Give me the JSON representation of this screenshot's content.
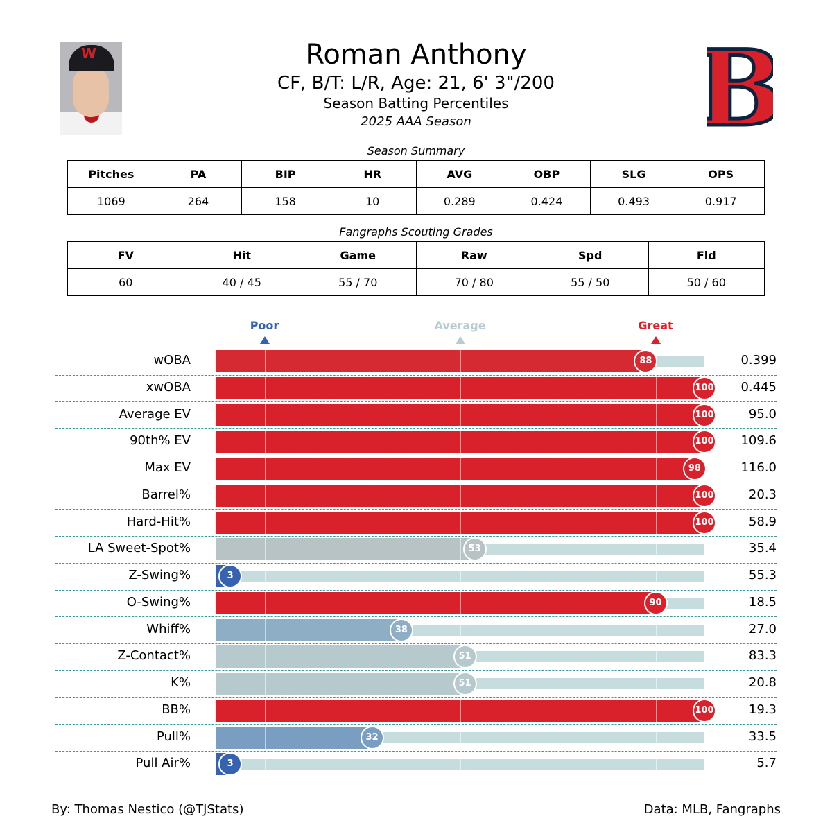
{
  "header": {
    "name": "Roman Anthony",
    "bio": "CF, B/T: L/R, Age: 21, 6' 3\"/200",
    "subtitle": "Season Batting Percentiles",
    "season": "2025 AAA Season",
    "logo_text": "B"
  },
  "summary": {
    "title": "Season Summary",
    "headers": [
      "Pitches",
      "PA",
      "BIP",
      "HR",
      "AVG",
      "OBP",
      "SLG",
      "OPS"
    ],
    "values": [
      "1069",
      "264",
      "158",
      "10",
      "0.289",
      "0.424",
      "0.493",
      "0.917"
    ]
  },
  "grades": {
    "title": "Fangraphs Scouting Grades",
    "headers": [
      "FV",
      "Hit",
      "Game",
      "Raw",
      "Spd",
      "Fld"
    ],
    "values": [
      "60",
      "40 / 45",
      "55 / 70",
      "70 / 80",
      "55 / 50",
      "50 / 60"
    ]
  },
  "chart_data": {
    "type": "bar",
    "orientation": "horizontal",
    "xlim": [
      0,
      100
    ],
    "markers": [
      {
        "label": "Poor",
        "percentile": 10,
        "color": "#3762b0"
      },
      {
        "label": "Average",
        "percentile": 50,
        "color": "#b6cccf"
      },
      {
        "label": "Great",
        "percentile": 90,
        "color": "#d9212b"
      }
    ],
    "rows": [
      {
        "stat": "wOBA",
        "percentile": 88,
        "value": "0.399",
        "color": "#d62a33"
      },
      {
        "stat": "xwOBA",
        "percentile": 100,
        "value": "0.445",
        "color": "#d9212b"
      },
      {
        "stat": "Average EV",
        "percentile": 100,
        "value": "95.0",
        "color": "#d9212b"
      },
      {
        "stat": "90th% EV",
        "percentile": 100,
        "value": "109.6",
        "color": "#d9212b"
      },
      {
        "stat": "Max EV",
        "percentile": 98,
        "value": "116.0",
        "color": "#d9212b"
      },
      {
        "stat": "Barrel%",
        "percentile": 100,
        "value": "20.3",
        "color": "#d9212b"
      },
      {
        "stat": "Hard-Hit%",
        "percentile": 100,
        "value": "58.9",
        "color": "#d9212b"
      },
      {
        "stat": "LA Sweet-Spot%",
        "percentile": 53,
        "value": "35.4",
        "color": "#b8c3c5"
      },
      {
        "stat": "Z-Swing%",
        "percentile": 3,
        "value": "55.3",
        "color": "#3762b0"
      },
      {
        "stat": "O-Swing%",
        "percentile": 90,
        "value": "18.5",
        "color": "#d9212b"
      },
      {
        "stat": "Whiff%",
        "percentile": 38,
        "value": "27.0",
        "color": "#8eaec6"
      },
      {
        "stat": "Z-Contact%",
        "percentile": 51,
        "value": "83.3",
        "color": "#b6c9cc"
      },
      {
        "stat": "K%",
        "percentile": 51,
        "value": "20.8",
        "color": "#b6c9cc"
      },
      {
        "stat": "BB%",
        "percentile": 100,
        "value": "19.3",
        "color": "#d9212b"
      },
      {
        "stat": "Pull%",
        "percentile": 32,
        "value": "33.5",
        "color": "#7a9dc2"
      },
      {
        "stat": "Pull Air%",
        "percentile": 3,
        "value": "5.7",
        "color": "#3762b0"
      }
    ]
  },
  "footer": {
    "author": "By: Thomas Nestico (@TJStats)",
    "source": "Data: MLB, Fangraphs"
  }
}
